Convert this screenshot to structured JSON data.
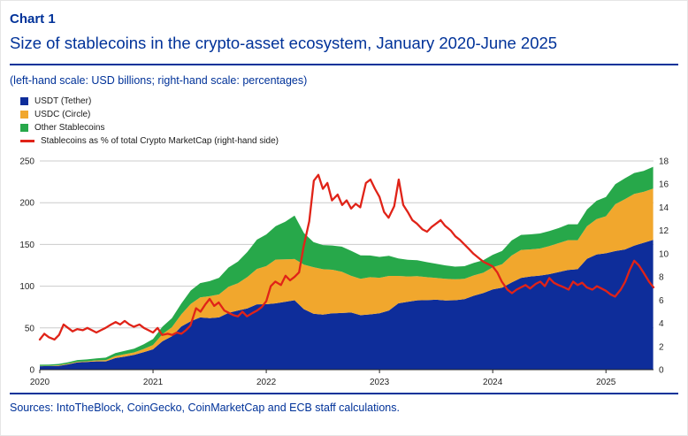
{
  "page": {
    "chart_label": "Chart 1",
    "title": "Size of stablecoins in the crypto-asset ecosystem, January 2020-June 2025",
    "scale_note": "(left-hand scale: USD billions; right-hand scale: percentages)",
    "sources": "Sources: IntoTheBlock, CoinGecko, CoinMarketCap and ECB staff calculations."
  },
  "colors": {
    "accent_text": "#003299",
    "usdt": "#0e2d9a",
    "usdc": "#f1a72d",
    "other": "#27a84a",
    "pct_line": "#e02318"
  },
  "legend": {
    "items": [
      {
        "label": "USDT (Tether)",
        "color": "#0e2d9a",
        "marker": "square"
      },
      {
        "label": "USDC (Circle)",
        "color": "#f1a72d",
        "marker": "square"
      },
      {
        "label": "Other Stablecoins",
        "color": "#27a84a",
        "marker": "square"
      },
      {
        "label": "Stablecoins as % of total Crypto MarketCap (right-hand side)",
        "color": "#e02318",
        "marker": "line"
      }
    ]
  },
  "chart_data": {
    "type": "area",
    "stacked": true,
    "title": "Size of stablecoins in the crypto-asset ecosystem, January 2020-June 2025",
    "left_axis": {
      "label": "USD billions",
      "min": 0,
      "max": 250,
      "ticks": [
        0,
        50,
        100,
        150,
        200,
        250
      ]
    },
    "right_axis": {
      "label": "percentages",
      "min": 0,
      "max": 18,
      "ticks": [
        0,
        2,
        4,
        6,
        8,
        10,
        12,
        14,
        16,
        18
      ]
    },
    "x_axis": {
      "min": 2020,
      "max": 2025.42,
      "ticks": [
        2020,
        2021,
        2022,
        2023,
        2024,
        2025
      ],
      "tick_labels": [
        "2020",
        "2021",
        "2022",
        "2023",
        "2024",
        "2025"
      ]
    },
    "grid": true,
    "legend_position": "top-left",
    "style": {
      "grid_color": "#cccccc",
      "axis_color": "#262626"
    },
    "x": [
      2020.0,
      2020.083,
      2020.167,
      2020.25,
      2020.333,
      2020.417,
      2020.5,
      2020.583,
      2020.667,
      2020.75,
      2020.833,
      2020.917,
      2021.0,
      2021.083,
      2021.167,
      2021.25,
      2021.333,
      2021.417,
      2021.5,
      2021.583,
      2021.667,
      2021.75,
      2021.833,
      2021.917,
      2022.0,
      2022.083,
      2022.167,
      2022.25,
      2022.333,
      2022.417,
      2022.5,
      2022.583,
      2022.667,
      2022.75,
      2022.833,
      2022.917,
      2023.0,
      2023.083,
      2023.167,
      2023.25,
      2023.333,
      2023.417,
      2023.5,
      2023.583,
      2023.667,
      2023.75,
      2023.833,
      2023.917,
      2024.0,
      2024.083,
      2024.167,
      2024.25,
      2024.333,
      2024.417,
      2024.5,
      2024.583,
      2024.667,
      2024.75,
      2024.833,
      2024.917,
      2025.0,
      2025.083,
      2025.167,
      2025.25,
      2025.333,
      2025.417
    ],
    "series": [
      {
        "id": "usdt",
        "name": "USDT (Tether)",
        "type": "stacked-area",
        "axis": "left",
        "color": "#0e2d9a",
        "values": [
          4.1,
          4.3,
          4.6,
          6.4,
          8.8,
          9.2,
          10.0,
          10.0,
          13.9,
          15.7,
          17.8,
          20.9,
          24.4,
          34.0,
          40.0,
          51.8,
          58.1,
          62.6,
          61.8,
          62.6,
          68.0,
          70.9,
          73.4,
          78.3,
          78.4,
          79.5,
          81.2,
          83.2,
          72.5,
          66.9,
          65.9,
          67.5,
          67.9,
          68.4,
          65.3,
          66.2,
          67.6,
          70.9,
          79.4,
          81.4,
          83.1,
          83.3,
          83.8,
          82.9,
          83.2,
          84.4,
          88.6,
          91.7,
          96.1,
          98.2,
          104.4,
          110.0,
          111.6,
          112.7,
          114.4,
          117.0,
          119.4,
          120.3,
          132.8,
          138.0,
          139.4,
          142.1,
          144.0,
          148.6,
          152.0,
          155.5
        ]
      },
      {
        "id": "usdc",
        "name": "USDC (Circle)",
        "type": "stacked-area",
        "axis": "left",
        "color": "#f1a72d",
        "values": [
          0.5,
          0.4,
          0.7,
          0.7,
          0.7,
          0.9,
          1.1,
          1.4,
          2.4,
          2.8,
          2.9,
          3.9,
          5.2,
          8.5,
          10.8,
          14.5,
          20.7,
          24.1,
          26.2,
          27.5,
          31.3,
          32.6,
          37.6,
          42.4,
          45.6,
          52.4,
          51.0,
          49.3,
          53.2,
          55.9,
          54.4,
          52.2,
          49.5,
          44.0,
          43.6,
          44.6,
          42.5,
          41.4,
          32.9,
          30.3,
          29.0,
          27.5,
          26.1,
          26.0,
          25.2,
          24.5,
          24.3,
          24.4,
          26.5,
          28.1,
          32.4,
          33.4,
          32.5,
          32.4,
          33.6,
          34.6,
          35.8,
          34.8,
          39.0,
          42.3,
          44.4,
          56.1,
          60.2,
          62.0,
          61.0,
          61.5
        ]
      },
      {
        "id": "other",
        "name": "Other Stablecoins",
        "type": "stacked-area",
        "axis": "left",
        "color": "#27a84a",
        "values": [
          1.3,
          1.4,
          1.6,
          1.8,
          2.0,
          2.2,
          2.5,
          3.0,
          3.5,
          4.0,
          4.5,
          5.5,
          7.0,
          9.0,
          11.0,
          13.0,
          16.0,
          17.0,
          18.0,
          20.0,
          23.0,
          26.0,
          30.0,
          35.0,
          38.0,
          40.0,
          45.0,
          52.0,
          38.0,
          30.0,
          29.0,
          29.0,
          30.0,
          30.0,
          28.0,
          26.0,
          25.0,
          24.0,
          21.0,
          20.0,
          19.0,
          18.0,
          17.0,
          16.0,
          15.0,
          15.0,
          15.0,
          15.0,
          15.0,
          16.0,
          18.0,
          18.0,
          18.0,
          18.0,
          18.0,
          18.0,
          19.0,
          19.0,
          20.0,
          22.0,
          23.0,
          24.0,
          25.0,
          25.0,
          25.0,
          26.0
        ]
      },
      {
        "id": "pct",
        "name": "Stablecoins as % of total Crypto MarketCap (right-hand side)",
        "type": "line",
        "axis": "right",
        "color": "#e02318",
        "x": [
          2020.0,
          2020.04,
          2020.08,
          2020.13,
          2020.17,
          2020.21,
          2020.25,
          2020.29,
          2020.33,
          2020.38,
          2020.42,
          2020.46,
          2020.5,
          2020.54,
          2020.58,
          2020.63,
          2020.67,
          2020.71,
          2020.75,
          2020.79,
          2020.83,
          2020.88,
          2020.92,
          2020.96,
          2021.0,
          2021.04,
          2021.08,
          2021.13,
          2021.17,
          2021.21,
          2021.25,
          2021.29,
          2021.33,
          2021.38,
          2021.42,
          2021.46,
          2021.5,
          2021.54,
          2021.58,
          2021.63,
          2021.67,
          2021.71,
          2021.75,
          2021.79,
          2021.83,
          2021.88,
          2021.92,
          2021.96,
          2022.0,
          2022.04,
          2022.08,
          2022.13,
          2022.17,
          2022.21,
          2022.25,
          2022.29,
          2022.33,
          2022.38,
          2022.42,
          2022.46,
          2022.5,
          2022.54,
          2022.58,
          2022.63,
          2022.67,
          2022.71,
          2022.75,
          2022.79,
          2022.83,
          2022.88,
          2022.92,
          2022.96,
          2023.0,
          2023.04,
          2023.08,
          2023.13,
          2023.17,
          2023.21,
          2023.25,
          2023.29,
          2023.33,
          2023.38,
          2023.42,
          2023.46,
          2023.5,
          2023.54,
          2023.58,
          2023.63,
          2023.67,
          2023.71,
          2023.75,
          2023.79,
          2023.83,
          2023.88,
          2023.92,
          2023.96,
          2024.0,
          2024.04,
          2024.08,
          2024.13,
          2024.17,
          2024.21,
          2024.25,
          2024.29,
          2024.33,
          2024.38,
          2024.42,
          2024.46,
          2024.5,
          2024.54,
          2024.58,
          2024.63,
          2024.67,
          2024.71,
          2024.75,
          2024.79,
          2024.83,
          2024.88,
          2024.92,
          2024.96,
          2025.0,
          2025.04,
          2025.08,
          2025.13,
          2025.17,
          2025.21,
          2025.25,
          2025.29,
          2025.33,
          2025.38,
          2025.42
        ],
        "values": [
          2.6,
          3.1,
          2.8,
          2.6,
          3.0,
          3.9,
          3.6,
          3.3,
          3.5,
          3.4,
          3.6,
          3.4,
          3.2,
          3.4,
          3.6,
          3.9,
          4.1,
          3.9,
          4.2,
          3.9,
          3.7,
          3.9,
          3.6,
          3.4,
          3.2,
          3.6,
          3.0,
          3.1,
          3.0,
          3.2,
          3.1,
          3.4,
          3.8,
          5.3,
          5.0,
          5.6,
          6.1,
          5.5,
          5.8,
          5.1,
          4.9,
          4.7,
          4.6,
          5.0,
          4.6,
          4.9,
          5.1,
          5.4,
          5.9,
          7.2,
          7.6,
          7.3,
          8.1,
          7.7,
          8.0,
          8.4,
          10.6,
          12.8,
          16.3,
          16.8,
          15.6,
          16.1,
          14.6,
          15.1,
          14.2,
          14.6,
          13.9,
          14.3,
          14.0,
          16.1,
          16.4,
          15.6,
          14.9,
          13.6,
          13.1,
          14.1,
          16.4,
          14.2,
          13.6,
          12.9,
          12.6,
          12.1,
          11.9,
          12.3,
          12.6,
          12.9,
          12.4,
          12.0,
          11.5,
          11.2,
          10.8,
          10.4,
          10.0,
          9.6,
          9.3,
          9.1,
          8.9,
          8.4,
          7.6,
          6.9,
          6.6,
          6.9,
          7.1,
          7.3,
          7.0,
          7.4,
          7.6,
          7.2,
          7.9,
          7.5,
          7.3,
          7.1,
          6.9,
          7.6,
          7.3,
          7.5,
          7.1,
          6.9,
          7.2,
          7.0,
          6.8,
          6.5,
          6.3,
          6.9,
          7.6,
          8.6,
          9.4,
          9.0,
          8.4,
          7.6,
          7.1
        ]
      }
    ]
  }
}
